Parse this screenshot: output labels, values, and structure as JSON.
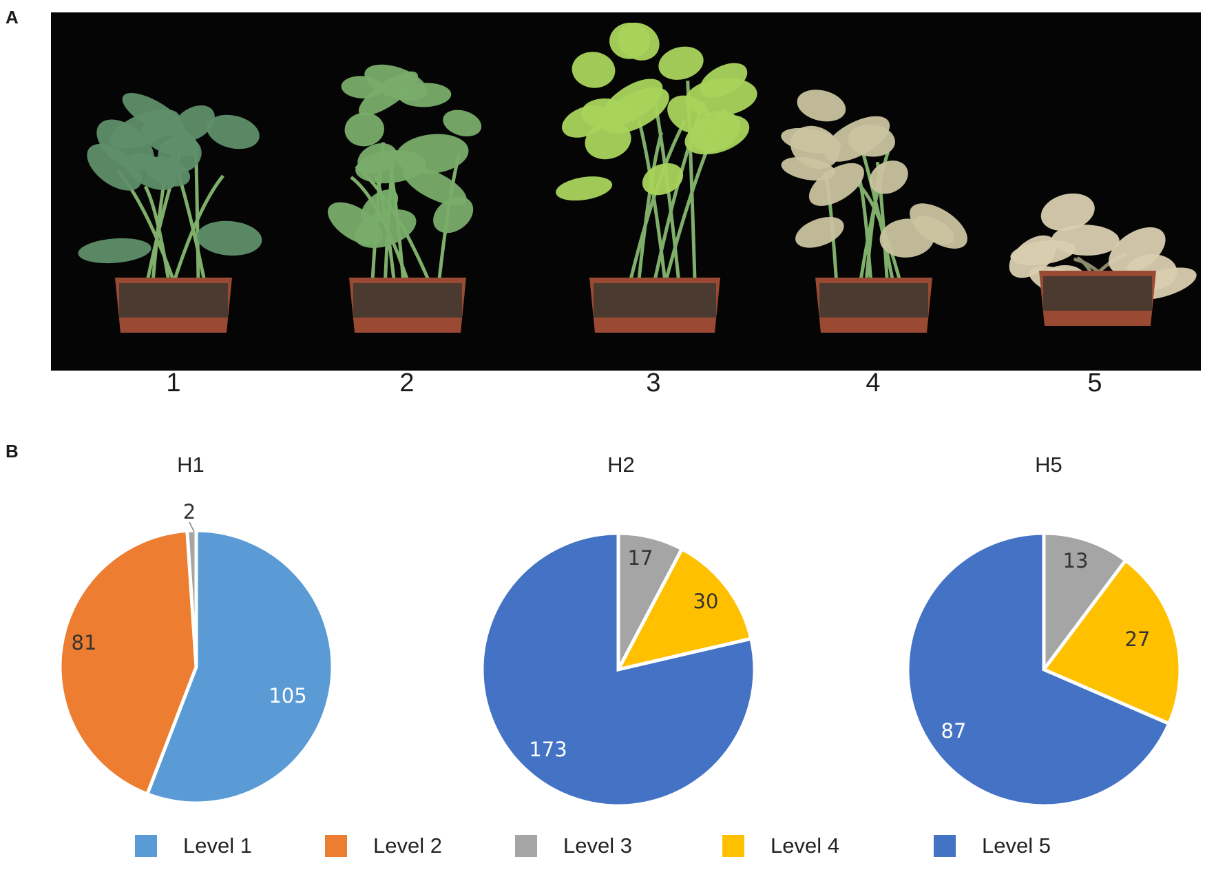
{
  "panels": {
    "a": "A",
    "b": "B"
  },
  "photo": {
    "pot_labels": [
      "1",
      "2",
      "3",
      "4",
      "5"
    ],
    "background": "#050505",
    "leaf_colors": [
      "#5f8f6a",
      "#79ad6a",
      "#a9d45c",
      "#c9c3a0",
      "#d9cdb0"
    ]
  },
  "colors": {
    "Level 1": "#5b9bd5",
    "Level 2": "#ed7d31",
    "Level 3": "#a5a5a5",
    "Level 4": "#ffc000",
    "Level 5": "#4472c4"
  },
  "chart_data": [
    {
      "type": "pie",
      "title": "H1",
      "slices": [
        {
          "label": "Level 1",
          "value": 105,
          "color": "#5b9bd5"
        },
        {
          "label": "Level 2",
          "value": 81,
          "color": "#ed7d31"
        },
        {
          "label": "Level 3",
          "value": 2,
          "color": "#a5a5a5"
        }
      ]
    },
    {
      "type": "pie",
      "title": "H2",
      "slices": [
        {
          "label": "Level 3",
          "value": 17,
          "color": "#a5a5a5"
        },
        {
          "label": "Level 4",
          "value": 30,
          "color": "#ffc000"
        },
        {
          "label": "Level 5",
          "value": 173,
          "color": "#4472c4"
        }
      ]
    },
    {
      "type": "pie",
      "title": "H5",
      "slices": [
        {
          "label": "Level 3",
          "value": 13,
          "color": "#a5a5a5"
        },
        {
          "label": "Level 4",
          "value": 27,
          "color": "#ffc000"
        },
        {
          "label": "Level 5",
          "value": 87,
          "color": "#4472c4"
        }
      ]
    }
  ],
  "legend": [
    {
      "label": "Level 1",
      "color": "#5b9bd5"
    },
    {
      "label": "Level 2",
      "color": "#ed7d31"
    },
    {
      "label": "Level 3",
      "color": "#a5a5a5"
    },
    {
      "label": "Level 4",
      "color": "#ffc000"
    },
    {
      "label": "Level 5",
      "color": "#4472c4"
    }
  ]
}
